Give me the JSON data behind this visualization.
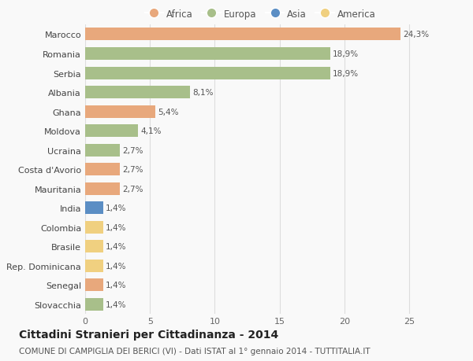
{
  "categories": [
    "Slovacchia",
    "Senegal",
    "Rep. Dominicana",
    "Brasile",
    "Colombia",
    "India",
    "Mauritania",
    "Costa d'Avorio",
    "Ucraina",
    "Moldova",
    "Ghana",
    "Albania",
    "Serbia",
    "Romania",
    "Marocco"
  ],
  "values": [
    1.4,
    1.4,
    1.4,
    1.4,
    1.4,
    1.4,
    2.7,
    2.7,
    2.7,
    4.1,
    5.4,
    8.1,
    18.9,
    18.9,
    24.3
  ],
  "colors": [
    "#a8bf8a",
    "#e8a87c",
    "#f0d080",
    "#f0d080",
    "#f0d080",
    "#5b8ec4",
    "#e8a87c",
    "#e8a87c",
    "#a8bf8a",
    "#a8bf8a",
    "#e8a87c",
    "#a8bf8a",
    "#a8bf8a",
    "#a8bf8a",
    "#e8a87c"
  ],
  "bar_labels": [
    "1,4%",
    "1,4%",
    "1,4%",
    "1,4%",
    "1,4%",
    "1,4%",
    "2,7%",
    "2,7%",
    "2,7%",
    "4,1%",
    "5,4%",
    "8,1%",
    "18,9%",
    "18,9%",
    "24,3%"
  ],
  "legend": {
    "Africa": "#e8a87c",
    "Europa": "#a8bf8a",
    "Asia": "#5b8ec4",
    "America": "#f0d080"
  },
  "xlim": [
    0,
    27
  ],
  "xticks": [
    0,
    5,
    10,
    15,
    20,
    25
  ],
  "title": "Cittadini Stranieri per Cittadinanza - 2014",
  "subtitle": "COMUNE DI CAMPIGLIA DEI BERICI (VI) - Dati ISTAT al 1° gennaio 2014 - TUTTITALIA.IT",
  "background_color": "#f9f9f9",
  "grid_color": "#dddddd",
  "bar_height": 0.65,
  "title_fontsize": 10,
  "subtitle_fontsize": 7.5,
  "label_fontsize": 7.5,
  "tick_fontsize": 8,
  "legend_fontsize": 8.5,
  "legend_marker_size": 9
}
